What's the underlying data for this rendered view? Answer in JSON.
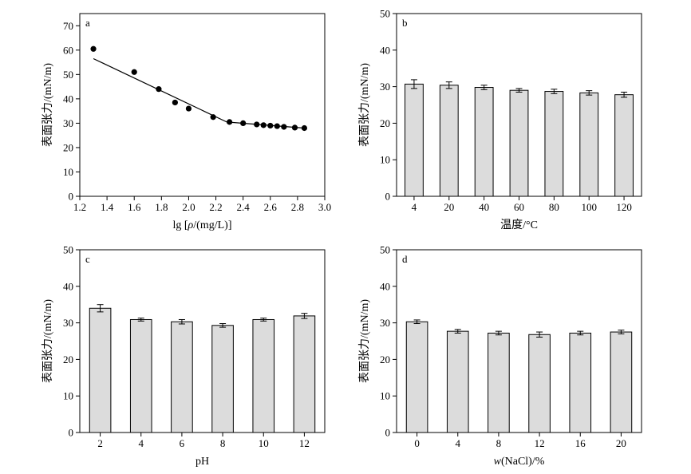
{
  "chart_data": [
    {
      "panel": "a",
      "type": "scatter",
      "xlabel": "lg [ρ/(mg/L)]",
      "ylabel": "表面张力/(mN/m)",
      "xlim": [
        1.2,
        3.0
      ],
      "ylim": [
        0,
        75
      ],
      "xticks": [
        1.2,
        1.4,
        1.6,
        1.8,
        2.0,
        2.2,
        2.4,
        2.6,
        2.8,
        3.0
      ],
      "xticklabels": [
        "1.2",
        "1.4",
        "1.6",
        "1.8",
        "2.0",
        "2.2",
        "2.4",
        "2.6",
        "2.8",
        "3.0"
      ],
      "yticks": [
        0,
        10,
        20,
        30,
        40,
        50,
        60,
        70
      ],
      "yticklabels": [
        "0",
        "10",
        "20",
        "30",
        "40",
        "50",
        "60",
        "70"
      ],
      "x": [
        1.3,
        1.6,
        1.78,
        1.9,
        2.0,
        2.18,
        2.3,
        2.4,
        2.5,
        2.55,
        2.6,
        2.65,
        2.7,
        2.78,
        2.85
      ],
      "y": [
        60.5,
        51,
        44,
        38.5,
        36,
        32.5,
        30.5,
        30,
        29.5,
        29.2,
        29,
        28.8,
        28.5,
        28.2,
        28
      ],
      "fit_lines": [
        {
          "x": [
            1.3,
            2.28
          ],
          "y": [
            56.5,
            30.5
          ]
        },
        {
          "x": [
            2.28,
            2.85
          ],
          "y": [
            30.5,
            28
          ]
        }
      ]
    },
    {
      "panel": "b",
      "type": "bar",
      "xlabel": "温度/°C",
      "ylabel": "表面张力/(mN/m)",
      "ylim": [
        0,
        50
      ],
      "yticks": [
        0,
        10,
        20,
        30,
        40,
        50
      ],
      "yticklabels": [
        "0",
        "10",
        "20",
        "30",
        "40",
        "50"
      ],
      "categories": [
        "4",
        "20",
        "40",
        "60",
        "80",
        "100",
        "120"
      ],
      "values": [
        30.7,
        30.4,
        29.8,
        29.0,
        28.7,
        28.3,
        27.8
      ],
      "errors": [
        1.2,
        0.9,
        0.6,
        0.5,
        0.6,
        0.6,
        0.7
      ]
    },
    {
      "panel": "c",
      "type": "bar",
      "xlabel": "pH",
      "ylabel": "表面张力/(mN/m)",
      "ylim": [
        0,
        50
      ],
      "yticks": [
        0,
        10,
        20,
        30,
        40,
        50
      ],
      "yticklabels": [
        "0",
        "10",
        "20",
        "30",
        "40",
        "50"
      ],
      "categories": [
        "2",
        "4",
        "6",
        "8",
        "10",
        "12"
      ],
      "values": [
        34.0,
        30.9,
        30.3,
        29.3,
        30.9,
        31.9
      ],
      "errors": [
        1.0,
        0.4,
        0.6,
        0.5,
        0.4,
        0.7
      ]
    },
    {
      "panel": "d",
      "type": "bar",
      "xlabel": "w(NaCl)/%",
      "ylabel": "表面张力/(mN/m)",
      "ylim": [
        0,
        50
      ],
      "yticks": [
        0,
        10,
        20,
        30,
        40,
        50
      ],
      "yticklabels": [
        "0",
        "10",
        "20",
        "30",
        "40",
        "50"
      ],
      "categories": [
        "0",
        "4",
        "8",
        "12",
        "16",
        "20"
      ],
      "values": [
        30.3,
        27.7,
        27.2,
        26.8,
        27.2,
        27.5
      ],
      "errors": [
        0.5,
        0.5,
        0.5,
        0.7,
        0.5,
        0.5
      ]
    }
  ]
}
